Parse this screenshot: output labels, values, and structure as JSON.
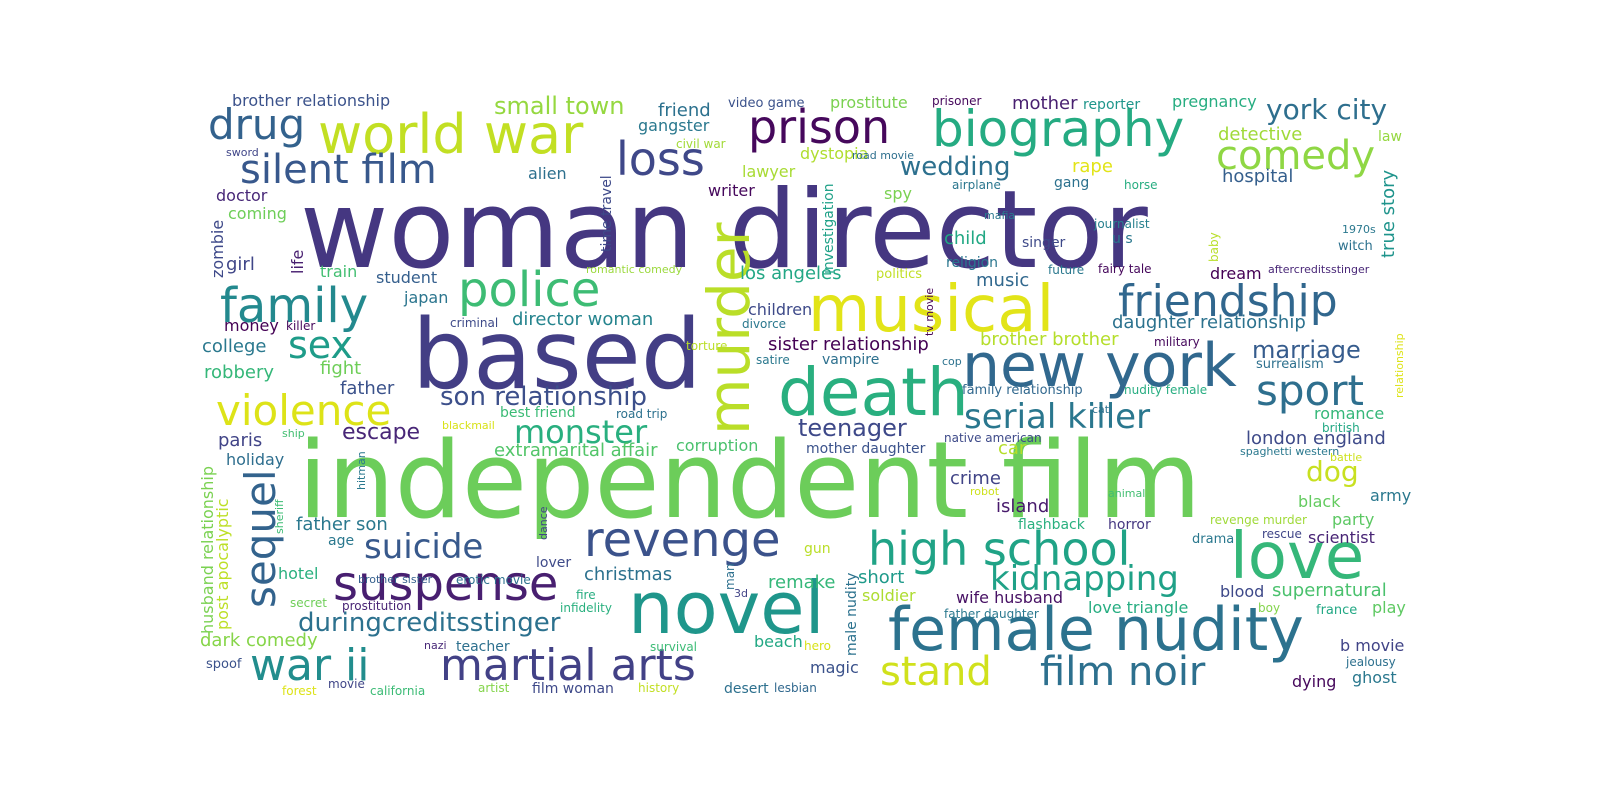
{
  "words": [
    {
      "text": "woman director",
      "color": "#453781"
    },
    {
      "text": "independent film",
      "color": "#6ccd5a"
    },
    {
      "text": "based",
      "color": "#433e85"
    },
    {
      "text": "musical",
      "color": "#e2e418"
    },
    {
      "text": "murder",
      "color": "#bade28"
    },
    {
      "text": "novel",
      "color": "#1f968b"
    },
    {
      "text": "death",
      "color": "#29af7f"
    },
    {
      "text": "new york",
      "color": "#31688e"
    },
    {
      "text": "female nudity",
      "color": "#2c728e"
    },
    {
      "text": "high school",
      "color": "#20a386"
    },
    {
      "text": "love",
      "color": "#35b779"
    },
    {
      "text": "world war",
      "color": "#c2df23"
    },
    {
      "text": "biography",
      "color": "#25ab82"
    },
    {
      "text": "prison",
      "color": "#46085c"
    },
    {
      "text": "revenge",
      "color": "#3b528b"
    },
    {
      "text": "suspense",
      "color": "#481f70"
    },
    {
      "text": "police",
      "color": "#3dbc74"
    },
    {
      "text": "family",
      "color": "#23898e"
    },
    {
      "text": "friendship",
      "color": "#31678e"
    },
    {
      "text": "silent film",
      "color": "#38588c"
    },
    {
      "text": "drug",
      "color": "#33628d"
    },
    {
      "text": "comedy",
      "color": "#8fd744"
    },
    {
      "text": "loss",
      "color": "#3f4889"
    },
    {
      "text": "violence",
      "color": "#dde318"
    },
    {
      "text": "war ii",
      "color": "#228d8d"
    },
    {
      "text": "martial arts",
      "color": "#424186"
    },
    {
      "text": "stand",
      "color": "#d0e11c"
    },
    {
      "text": "film noir",
      "color": "#2d708e"
    },
    {
      "text": "kidnapping",
      "color": "#1fa187"
    },
    {
      "text": "sport",
      "color": "#2e6f8e"
    },
    {
      "text": "serial killer",
      "color": "#2a778e"
    },
    {
      "text": "sequel",
      "color": "#33638d"
    },
    {
      "text": "sex",
      "color": "#1e9c89"
    },
    {
      "text": "suicide",
      "color": "#38598c"
    },
    {
      "text": "monster",
      "color": "#29af7f"
    },
    {
      "text": "duringcreditsstinger",
      "color": "#2c718e"
    },
    {
      "text": "son relationship",
      "color": "#3c4f8a"
    },
    {
      "text": "small town",
      "color": "#95d840"
    },
    {
      "text": "york city",
      "color": "#2e6f8e"
    },
    {
      "text": "wedding",
      "color": "#2d708e"
    },
    {
      "text": "marriage",
      "color": "#365c8d"
    },
    {
      "text": "teenager",
      "color": "#3e4989"
    },
    {
      "text": "escape",
      "color": "#482677"
    },
    {
      "text": "daughter relationship",
      "color": "#2c728e"
    },
    {
      "text": "sister relationship",
      "color": "#440154"
    },
    {
      "text": "director woman",
      "color": "#25848e"
    },
    {
      "text": "extramarital affair",
      "color": "#52c569"
    },
    {
      "text": "brother brother",
      "color": "#b5de2b"
    },
    {
      "text": "london england",
      "color": "#3e4a89"
    },
    {
      "text": "dog",
      "color": "#c8e020"
    },
    {
      "text": "wife husband",
      "color": "#471164"
    },
    {
      "text": "supernatural",
      "color": "#4ac16d"
    },
    {
      "text": "love triangle",
      "color": "#26ad81"
    },
    {
      "text": "party",
      "color": "#5cc863"
    },
    {
      "text": "christmas",
      "color": "#2c718e"
    },
    {
      "text": "remake",
      "color": "#35b779"
    },
    {
      "text": "short",
      "color": "#1f9a8a"
    },
    {
      "text": "soldier",
      "color": "#addc30"
    },
    {
      "text": "dark comedy",
      "color": "#86d549"
    },
    {
      "text": "husband relationship",
      "color": "#7ad151"
    },
    {
      "text": "post apocalyptic",
      "color": "#bddf26"
    },
    {
      "text": "father son",
      "color": "#2a788e"
    },
    {
      "text": "island",
      "color": "#481a6c"
    },
    {
      "text": "crime",
      "color": "#414487"
    },
    {
      "text": "hospital",
      "color": "#355f8d"
    },
    {
      "text": "true story",
      "color": "#1f948c"
    },
    {
      "text": "detective",
      "color": "#a0da39"
    },
    {
      "text": "pregnancy",
      "color": "#27ad81"
    },
    {
      "text": "reporter",
      "color": "#1f968b"
    },
    {
      "text": "mother",
      "color": "#481f70"
    },
    {
      "text": "prisoner",
      "color": "#46085c"
    },
    {
      "text": "prostitute",
      "color": "#7ad151"
    },
    {
      "text": "video game",
      "color": "#3b528b"
    },
    {
      "text": "friend",
      "color": "#2c718e"
    },
    {
      "text": "gangster",
      "color": "#2a788e"
    },
    {
      "text": "brother relationship",
      "color": "#3b528b"
    },
    {
      "text": "sword",
      "color": "#404688"
    },
    {
      "text": "doctor",
      "color": "#482878"
    },
    {
      "text": "coming",
      "color": "#6ece58"
    },
    {
      "text": "zombie",
      "color": "#3e4989"
    },
    {
      "text": "girl",
      "color": "#404688"
    },
    {
      "text": "life",
      "color": "#481f70"
    },
    {
      "text": "train",
      "color": "#42be71"
    },
    {
      "text": "student",
      "color": "#355f8d"
    },
    {
      "text": "japan",
      "color": "#2b758e"
    },
    {
      "text": "money",
      "color": "#440154"
    },
    {
      "text": "killer",
      "color": "#46085c"
    },
    {
      "text": "criminal",
      "color": "#3e4a89"
    },
    {
      "text": "college",
      "color": "#2a788e"
    },
    {
      "text": "robbery",
      "color": "#35b779"
    },
    {
      "text": "fight",
      "color": "#6ece58"
    },
    {
      "text": "father",
      "color": "#3b528b"
    },
    {
      "text": "paris",
      "color": "#414487"
    },
    {
      "text": "holiday",
      "color": "#2e6e8e"
    },
    {
      "text": "age",
      "color": "#2a788e"
    },
    {
      "text": "hotel",
      "color": "#2ab07f"
    },
    {
      "text": "secret",
      "color": "#6ece58"
    },
    {
      "text": "prostitution",
      "color": "#482475"
    },
    {
      "text": "spoof",
      "color": "#3b528b"
    },
    {
      "text": "forest",
      "color": "#dde318"
    },
    {
      "text": "movie",
      "color": "#404688"
    },
    {
      "text": "california",
      "color": "#3bbb75"
    },
    {
      "text": "artist",
      "color": "#84d44b"
    },
    {
      "text": "film woman",
      "color": "#3e4989"
    },
    {
      "text": "history",
      "color": "#c2df23"
    },
    {
      "text": "desert",
      "color": "#2d708e"
    },
    {
      "text": "lesbian",
      "color": "#31688e"
    },
    {
      "text": "alien",
      "color": "#2d708e"
    },
    {
      "text": "time travel",
      "color": "#3e4a89"
    },
    {
      "text": "writer",
      "color": "#46085c"
    },
    {
      "text": "lawyer",
      "color": "#a8db34"
    },
    {
      "text": "investigation",
      "color": "#1fa188"
    },
    {
      "text": "spy",
      "color": "#7ad151"
    },
    {
      "text": "dystopia",
      "color": "#b0dd2f"
    },
    {
      "text": "road movie",
      "color": "#2e6f8e"
    },
    {
      "text": "civil war",
      "color": "#a2da37"
    },
    {
      "text": "rape",
      "color": "#e2e418"
    },
    {
      "text": "gang",
      "color": "#2c718e"
    },
    {
      "text": "horse",
      "color": "#27ad81"
    },
    {
      "text": "airplane",
      "color": "#2a768e"
    },
    {
      "text": "mafia",
      "color": "#2a788e"
    },
    {
      "text": "child",
      "color": "#22a884"
    },
    {
      "text": "singer",
      "color": "#3e4a89"
    },
    {
      "text": "journalist",
      "color": "#27808e"
    },
    {
      "text": "u s",
      "color": "#2a788e"
    },
    {
      "text": "baby",
      "color": "#b8de29"
    },
    {
      "text": "1970s",
      "color": "#2a788e"
    },
    {
      "text": "witch",
      "color": "#2c718e"
    },
    {
      "text": "law",
      "color": "#95d840"
    },
    {
      "text": "religion",
      "color": "#2a768e"
    },
    {
      "text": "future",
      "color": "#2a788e"
    },
    {
      "text": "fairy tale",
      "color": "#46085c"
    },
    {
      "text": "aftercreditsstinger",
      "color": "#482677"
    },
    {
      "text": "dream",
      "color": "#440154"
    },
    {
      "text": "romantic comedy",
      "color": "#9bd93c"
    },
    {
      "text": "los angeles",
      "color": "#22a785"
    },
    {
      "text": "politics",
      "color": "#c0df25"
    },
    {
      "text": "music",
      "color": "#31688e"
    },
    {
      "text": "children",
      "color": "#3e4a89"
    },
    {
      "text": "divorce",
      "color": "#2a788e"
    },
    {
      "text": "tv movie",
      "color": "#440154"
    },
    {
      "text": "torture",
      "color": "#bade28"
    },
    {
      "text": "satire",
      "color": "#2a788e"
    },
    {
      "text": "vampire",
      "color": "#2d708e"
    },
    {
      "text": "cop",
      "color": "#2c728e"
    },
    {
      "text": "military",
      "color": "#46085c"
    },
    {
      "text": "relationship",
      "color": "#dde318"
    },
    {
      "text": "surrealism",
      "color": "#2d708e"
    },
    {
      "text": "family relationship",
      "color": "#31688e"
    },
    {
      "text": "nudity female",
      "color": "#27ad81"
    },
    {
      "text": "cat",
      "color": "#2d708e"
    },
    {
      "text": "romance",
      "color": "#35b779"
    },
    {
      "text": "british",
      "color": "#22a884"
    },
    {
      "text": "native american",
      "color": "#3e4a89"
    },
    {
      "text": "spaghetti western",
      "color": "#2a788e"
    },
    {
      "text": "battle",
      "color": "#cde11d"
    },
    {
      "text": "best friend",
      "color": "#3bbb75"
    },
    {
      "text": "road trip",
      "color": "#2c718e"
    },
    {
      "text": "blackmail",
      "color": "#d8e219"
    },
    {
      "text": "corruption",
      "color": "#4ac16d"
    },
    {
      "text": "mother daughter",
      "color": "#3b528b"
    },
    {
      "text": "car",
      "color": "#b5de2b"
    },
    {
      "text": "robot",
      "color": "#cde11d"
    },
    {
      "text": "animal",
      "color": "#42be71"
    },
    {
      "text": "black",
      "color": "#63cb5f"
    },
    {
      "text": "army",
      "color": "#2a788e"
    },
    {
      "text": "ship",
      "color": "#42be71"
    },
    {
      "text": "sheriff",
      "color": "#3dbc74"
    },
    {
      "text": "hitman",
      "color": "#2a788e"
    },
    {
      "text": "dance",
      "color": "#414487"
    },
    {
      "text": "erotic movie",
      "color": "#2d708e"
    },
    {
      "text": "brother sister",
      "color": "#355f8d"
    },
    {
      "text": "fire",
      "color": "#27ad81"
    },
    {
      "text": "infidelity",
      "color": "#2ab07f"
    },
    {
      "text": "lover",
      "color": "#3e4a89"
    },
    {
      "text": "gun",
      "color": "#bade28"
    },
    {
      "text": "man",
      "color": "#2d708e"
    },
    {
      "text": "3d",
      "color": "#414487"
    },
    {
      "text": "male nudity",
      "color": "#2c728e"
    },
    {
      "text": "nazi",
      "color": "#482878"
    },
    {
      "text": "teacher",
      "color": "#2d708e"
    },
    {
      "text": "survival",
      "color": "#3bbb75"
    },
    {
      "text": "beach",
      "color": "#22a884"
    },
    {
      "text": "hero",
      "color": "#d8e219"
    },
    {
      "text": "magic",
      "color": "#3b528b"
    },
    {
      "text": "father daughter",
      "color": "#2a788e"
    },
    {
      "text": "flashback",
      "color": "#2ab07f"
    },
    {
      "text": "horror",
      "color": "#453781"
    },
    {
      "text": "drama",
      "color": "#2a788e"
    },
    {
      "text": "revenge murder",
      "color": "#a0da39"
    },
    {
      "text": "rescue",
      "color": "#404688"
    },
    {
      "text": "scientist",
      "color": "#482475"
    },
    {
      "text": "blood",
      "color": "#3e4989"
    },
    {
      "text": "boy",
      "color": "#84d44b"
    },
    {
      "text": "france",
      "color": "#22a884"
    },
    {
      "text": "play",
      "color": "#5ec962"
    },
    {
      "text": "b movie",
      "color": "#414487"
    },
    {
      "text": "jealousy",
      "color": "#2d708e"
    },
    {
      "text": "dying",
      "color": "#46085c"
    },
    {
      "text": "ghost",
      "color": "#2a788e"
    }
  ]
}
